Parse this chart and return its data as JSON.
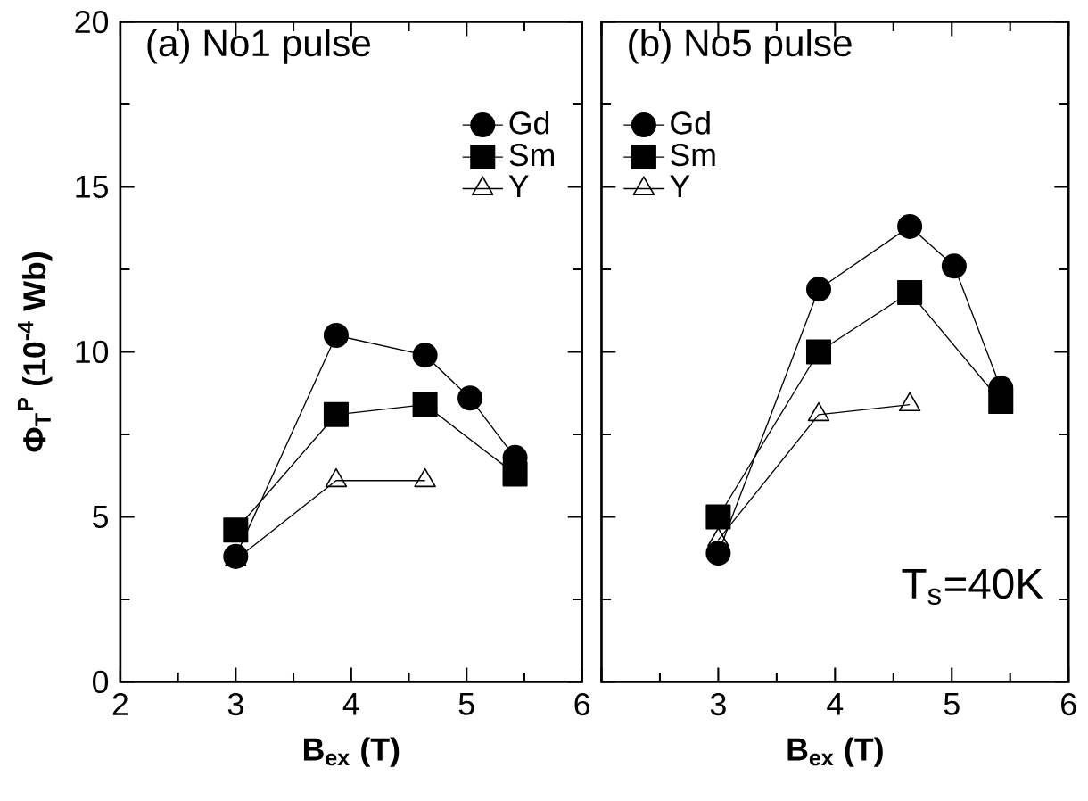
{
  "chart_data": [
    {
      "type": "line",
      "title": "(a) No1 pulse",
      "xlabel": "B$_{ex}$ (T)",
      "ylabel": "Φ$_{T}$$^{P}$ (10$^{-4}$ Wb)",
      "xlim": [
        2,
        6
      ],
      "ylim": [
        0,
        20
      ],
      "xticks": [
        2,
        3,
        4,
        5,
        6
      ],
      "yticks": [
        0,
        5,
        10,
        15,
        20
      ],
      "legend": "top right",
      "grid": false,
      "line_style": "solid",
      "series": [
        {
          "name": "Gd",
          "color": "#000000",
          "marker": "circle",
          "x": [
            3,
            3.87,
            4.64,
            5.03,
            5.42
          ],
          "values": [
            3.8,
            10.5,
            9.9,
            8.6,
            6.8
          ]
        },
        {
          "name": "Sm",
          "color": "#000000",
          "marker": "square",
          "x": [
            3,
            3.87,
            4.64,
            5.42
          ],
          "values": [
            4.6,
            8.1,
            8.4,
            6.3
          ]
        },
        {
          "name": "Y",
          "color": "#000000",
          "marker": "triangle",
          "x": [
            3,
            3.87,
            4.64
          ],
          "values": [
            3.7,
            6.1,
            6.1
          ]
        }
      ]
    },
    {
      "type": "line",
      "title": "(b) No5 pulse",
      "xlabel": "B$_{ex}$ (T)",
      "xlim": [
        2,
        6
      ],
      "ylim": [
        0,
        20
      ],
      "xticks": [
        {
          "value": 2,
          "label": null
        },
        3,
        4,
        5,
        6
      ],
      "yticks": [
        0,
        5,
        10,
        15,
        20
      ],
      "tick_labels": "x",
      "legend": "top left",
      "grid": false,
      "line_style": "solid",
      "annotations": [
        "T$_{s}$=40K"
      ],
      "series": [
        {
          "name": "Gd",
          "color": "#000000",
          "marker": "circle",
          "x": [
            3,
            3.86,
            4.64,
            5.02,
            5.42
          ],
          "values": [
            3.9,
            11.9,
            13.8,
            12.6,
            8.9
          ]
        },
        {
          "name": "Sm",
          "color": "#000000",
          "marker": "square",
          "x": [
            3,
            3.86,
            4.64,
            5.42
          ],
          "values": [
            5.0,
            10.0,
            11.8,
            8.5
          ]
        },
        {
          "name": "Y",
          "color": "#000000",
          "marker": "triangle",
          "x": [
            3,
            3.86,
            4.64
          ],
          "values": [
            4.3,
            8.1,
            8.4
          ]
        }
      ]
    }
  ]
}
